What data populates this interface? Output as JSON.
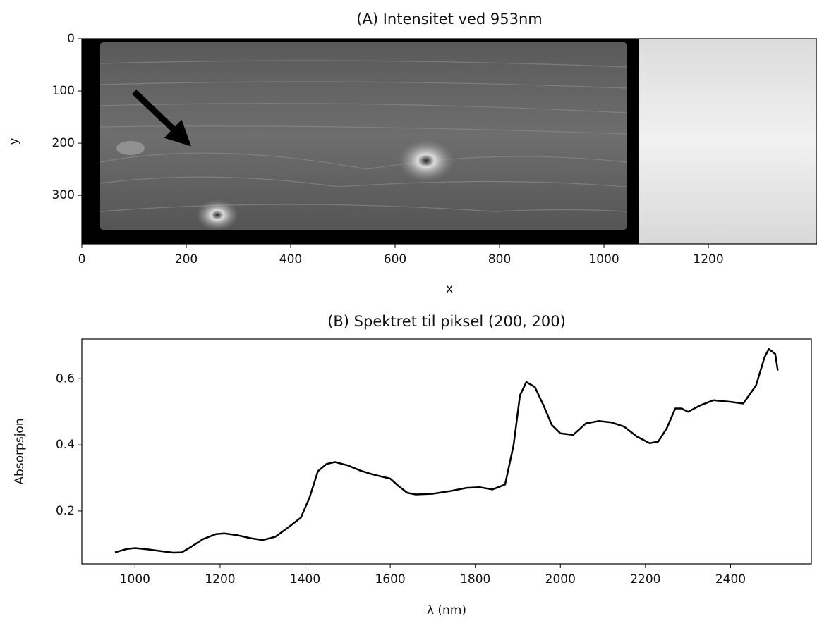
{
  "chart_data": [
    {
      "type": "image",
      "title": "(A) Intensitet ved 953nm",
      "xlabel": "x",
      "ylabel": "y",
      "xlim": [
        0,
        1408
      ],
      "ylim": [
        393,
        0
      ],
      "xticks": [
        0,
        200,
        400,
        600,
        800,
        1000,
        1200
      ],
      "yticks": [
        0,
        100,
        200,
        300
      ]
    },
    {
      "type": "line",
      "title": "(B) Spektret til piksel (200, 200)",
      "xlabel": "λ (nm)",
      "ylabel": "Absorpsjon",
      "xlim": [
        875,
        2590
      ],
      "ylim": [
        0.04,
        0.72
      ],
      "xticks": [
        1000,
        1200,
        1400,
        1600,
        1800,
        2000,
        2200,
        2400
      ],
      "yticks": [
        0.2,
        0.4,
        0.6
      ],
      "color": "#000000",
      "x": [
        953,
        980,
        1000,
        1030,
        1060,
        1090,
        1110,
        1130,
        1160,
        1190,
        1210,
        1240,
        1270,
        1300,
        1330,
        1360,
        1390,
        1410,
        1430,
        1450,
        1470,
        1500,
        1530,
        1560,
        1600,
        1620,
        1640,
        1660,
        1700,
        1740,
        1780,
        1810,
        1840,
        1870,
        1890,
        1905,
        1920,
        1940,
        1960,
        1980,
        2000,
        2030,
        2060,
        2090,
        2120,
        2150,
        2180,
        2210,
        2230,
        2250,
        2270,
        2285,
        2300,
        2330,
        2360,
        2400,
        2430,
        2460,
        2480,
        2490,
        2505,
        2511
      ],
      "values": [
        0.075,
        0.085,
        0.088,
        0.084,
        0.079,
        0.074,
        0.075,
        0.09,
        0.115,
        0.13,
        0.132,
        0.127,
        0.118,
        0.112,
        0.122,
        0.15,
        0.18,
        0.24,
        0.32,
        0.342,
        0.348,
        0.338,
        0.322,
        0.31,
        0.298,
        0.275,
        0.255,
        0.25,
        0.252,
        0.26,
        0.27,
        0.272,
        0.265,
        0.28,
        0.4,
        0.55,
        0.59,
        0.575,
        0.52,
        0.46,
        0.435,
        0.43,
        0.465,
        0.472,
        0.468,
        0.455,
        0.425,
        0.405,
        0.41,
        0.45,
        0.51,
        0.51,
        0.5,
        0.52,
        0.535,
        0.53,
        0.525,
        0.58,
        0.665,
        0.69,
        0.675,
        0.625
      ]
    }
  ]
}
